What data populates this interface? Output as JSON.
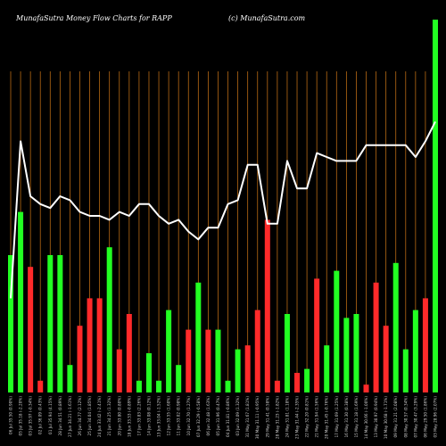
{
  "header": {
    "title": "MunafaSutra  Money Flow  Charts for RAPP",
    "watermark": "(c) MunafaSutra.com"
  },
  "colors": {
    "background": "#000000",
    "gridline": "#b86a14",
    "green": "#22ff22",
    "red": "#ff2a2a",
    "line": "#ffffff"
  },
  "chart_data": {
    "type": "bar",
    "title": "MunafaSutra  Money Flow  Charts for RAPP",
    "grid": "vertical",
    "ylim": [
      0,
      100
    ],
    "categories": [
      "06 Jul 35.50 (0.90%)",
      "05 Jul 35.18 (-2.20%)",
      "03 Jul 35.97 (-0.34%)",
      "02 Jul 36.09 (0.43%)",
      "01 Jul 35.94 (4.15%)",
      "28 Jun 34.51 (0.89%)",
      "27 Jun 34.21 (-1.61%)",
      "26 Jun 34.77 (2.12%)",
      "25 Jun 34.04 (1.85%)",
      "24 Jun 33.42 (-2.41%)",
      "21 Jun 34.25 (1.32%)",
      "20 Jun 33.80 (0.80%)",
      "18 Jun 33.53 (-0.89%)",
      "17 Jun 33.83 (2.26%)",
      "14 Jun 33.08 (0.12%)",
      "13 Jun 33.04 (-1.52%)",
      "12 Jun 33.55 (1.60%)",
      "11 Jun 33.02 (0.98%)",
      "10 Jun 32.70 (1.27%)",
      "07 Jun 32.29 (-0.58%)",
      "06 Jun 32.48 (1.63%)",
      "05 Jun 31.96 (0.47%)",
      "04 Jun 31.81 (-0.86%)",
      "03 Jun 32.09 (1.32%)",
      "31 May 31.67 (1.81%)",
      "30 May 31.11 (-0.95%)",
      "29 May 31.41 (0.58%)",
      "28 May 31.23 (-1.82%)",
      "24 May 31.81 (1.18%)",
      "23 May 31.44 (-2.35%)",
      "22 May 32.20 (0.81%)",
      "21 May 31.94 (1.56%)",
      "20 May 31.45 (-0.76%)",
      "17 May 31.69 (1.25%)",
      "16 May 31.30 (0.38%)",
      "15 May 31.18 (1.69%)",
      "14 May 30.66 (-1.00%)",
      "13 May 30.97 (0.94%)",
      "10 May 30.68 (-1.71%)",
      "09 May 31.21 (2.08%)",
      "08 May 30.57 (0.34%)",
      "07 May 30.47 (3.29%)",
      "06 May 29.50 (1.86%)",
      "03 May 28.96 (2.07%)"
    ],
    "values": [
      35,
      46,
      32,
      3,
      35,
      35,
      7,
      17,
      24,
      24,
      37,
      11,
      20,
      3,
      10,
      3,
      21,
      7,
      16,
      28,
      16,
      16,
      3,
      11,
      12,
      21,
      44,
      3,
      20,
      5,
      6,
      29,
      12,
      31,
      19,
      20,
      2,
      28,
      17,
      33,
      11,
      21,
      24,
      95
    ],
    "colors": [
      "green",
      "green",
      "red",
      "red",
      "green",
      "green",
      "green",
      "red",
      "red",
      "red",
      "green",
      "red",
      "red",
      "green",
      "green",
      "green",
      "green",
      "green",
      "red",
      "green",
      "red",
      "green",
      "green",
      "green",
      "red",
      "red",
      "red",
      "red",
      "green",
      "red",
      "green",
      "red",
      "green",
      "green",
      "green",
      "green",
      "red",
      "red",
      "red",
      "green",
      "green",
      "green",
      "red",
      "green"
    ],
    "series": [
      {
        "type": "line",
        "values": [
          24,
          64,
          50,
          48,
          47,
          50,
          49,
          46,
          45,
          45,
          44,
          46,
          45,
          48,
          48,
          45,
          43,
          44,
          41,
          39,
          42,
          42,
          48,
          49,
          58,
          58,
          43,
          43,
          59,
          52,
          52,
          61,
          60,
          59,
          59,
          59,
          63,
          63,
          63,
          63,
          63,
          60,
          64,
          69
        ]
      }
    ]
  }
}
